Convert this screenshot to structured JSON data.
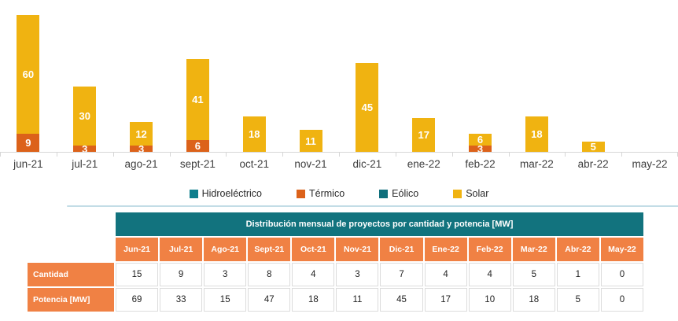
{
  "chart_data": {
    "type": "bar",
    "stacked": true,
    "categories": [
      "jun-21",
      "jul-21",
      "ago-21",
      "sept-21",
      "oct-21",
      "nov-21",
      "dic-21",
      "ene-22",
      "feb-22",
      "mar-22",
      "abr-22",
      "may-22"
    ],
    "series": [
      {
        "name": "Hidroeléctrico",
        "color": "#0E7E8C",
        "values": [
          0,
          0,
          0,
          0,
          0,
          0,
          0,
          0,
          0,
          0,
          0,
          0
        ]
      },
      {
        "name": "Térmico",
        "color": "#DC621A",
        "values": [
          9,
          3,
          3,
          6,
          0,
          0,
          0,
          0,
          3,
          0,
          0,
          0
        ]
      },
      {
        "name": "Eólico",
        "color": "#0F6F7C",
        "values": [
          0,
          0,
          0,
          0,
          0,
          0,
          0,
          0,
          0,
          0,
          0,
          0
        ]
      },
      {
        "name": "Solar",
        "color": "#F0B311",
        "values": [
          60,
          30,
          12,
          41,
          18,
          11,
          45,
          17,
          6,
          18,
          5,
          0
        ]
      }
    ],
    "ylim": [
      0,
      69
    ],
    "grid": false,
    "legend_position": "bottom",
    "value_labels": "white bold numbers inside segments"
  },
  "table": {
    "title": "Distribución mensual de proyectos por cantidad y potencia [MW]",
    "columns": [
      "Jun-21",
      "Jul-21",
      "Ago-21",
      "Sept-21",
      "Oct-21",
      "Nov-21",
      "Dic-21",
      "Ene-22",
      "Feb-22",
      "Mar-22",
      "Abr-22",
      "May-22"
    ],
    "rows": [
      {
        "label": "Cantidad",
        "values": [
          "15",
          "9",
          "3",
          "8",
          "4",
          "3",
          "7",
          "4",
          "4",
          "5",
          "1",
          "0"
        ]
      },
      {
        "label": "Potencia [MW]",
        "values": [
          "69",
          "33",
          "15",
          "47",
          "18",
          "11",
          "45",
          "17",
          "10",
          "18",
          "5",
          "0"
        ]
      }
    ],
    "colors": {
      "header_teal": "#12737E",
      "accent_orange": "#F08144"
    }
  }
}
